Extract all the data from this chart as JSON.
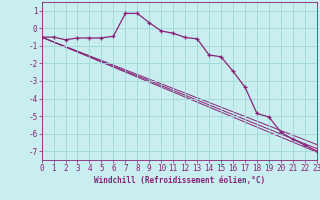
{
  "xlabel": "Windchill (Refroidissement éolien,°C)",
  "bg_color": "#c8eef0",
  "grid_color": "#a0d8d8",
  "line_color": "#882277",
  "x_main": [
    0,
    1,
    2,
    3,
    4,
    5,
    6,
    7,
    8,
    9,
    10,
    11,
    12,
    13,
    14,
    15,
    16,
    17,
    18,
    19,
    20,
    21,
    22,
    23
  ],
  "y_main": [
    -0.5,
    -0.5,
    -0.65,
    -0.55,
    -0.55,
    -0.55,
    -0.45,
    0.85,
    0.85,
    0.32,
    -0.15,
    -0.28,
    -0.52,
    -0.6,
    -1.52,
    -1.62,
    -2.45,
    -3.35,
    -4.85,
    -5.05,
    -5.92,
    -6.32,
    -6.65,
    -7.0
  ],
  "line1": {
    "x": [
      0,
      23
    ],
    "y": [
      -0.5,
      -6.85
    ]
  },
  "line2": {
    "x": [
      0,
      23
    ],
    "y": [
      -0.5,
      -6.62
    ]
  },
  "line3": {
    "x": [
      0,
      23
    ],
    "y": [
      -0.5,
      -7.05
    ]
  },
  "xlim": [
    0,
    23
  ],
  "ylim": [
    -7.5,
    1.5
  ],
  "yticks": [
    1,
    0,
    -1,
    -2,
    -3,
    -4,
    -5,
    -6,
    -7
  ],
  "xticks": [
    0,
    1,
    2,
    3,
    4,
    5,
    6,
    7,
    8,
    9,
    10,
    11,
    12,
    13,
    14,
    15,
    16,
    17,
    18,
    19,
    20,
    21,
    22,
    23
  ],
  "tick_fontsize": 5.5,
  "xlabel_fontsize": 5.5
}
